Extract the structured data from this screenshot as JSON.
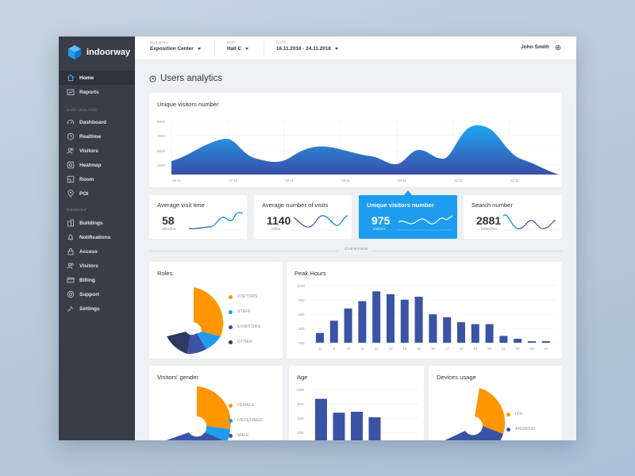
{
  "app": {
    "name": "indoorway"
  },
  "colors": {
    "primary": "#1e9cf0",
    "navy": "#3a53a4",
    "orange": "#ff9600",
    "dark": "#2d3a63",
    "sidebar": "#3a3d47"
  },
  "sidebar": {
    "top_items": [
      {
        "label": "Home",
        "icon": "home-icon",
        "active": true
      },
      {
        "label": "Reports",
        "icon": "reports-icon"
      }
    ],
    "analysis_header": "DATA ANALYSIS",
    "analysis_items": [
      {
        "label": "Dashboard",
        "icon": "dashboard-icon"
      },
      {
        "label": "Realtime",
        "icon": "clock-icon"
      },
      {
        "label": "Visitors",
        "icon": "visitors-icon"
      },
      {
        "label": "Heatmap",
        "icon": "heatmap-icon"
      },
      {
        "label": "Room",
        "icon": "room-icon"
      },
      {
        "label": "POI",
        "icon": "pin-icon"
      }
    ],
    "manage_header": "EMANAGE",
    "manage_items": [
      {
        "label": "Buildings",
        "icon": "building-icon"
      },
      {
        "label": "Notifications",
        "icon": "bell-icon"
      },
      {
        "label": "Access",
        "icon": "lock-icon"
      },
      {
        "label": "Visitors",
        "icon": "visitors-icon"
      },
      {
        "label": "Billing",
        "icon": "card-icon"
      },
      {
        "label": "Support",
        "icon": "support-icon"
      },
      {
        "label": "Settings",
        "icon": "wrench-icon"
      }
    ]
  },
  "topbar": {
    "building": {
      "label": "BUILDING",
      "value": "Exposition Center"
    },
    "map": {
      "label": "MAP",
      "value": "Hall C"
    },
    "data": {
      "label": "DATA",
      "value": "16.11.2016 - 24.11.2016"
    },
    "user": "John Smith"
  },
  "page": {
    "title": "Users analytics"
  },
  "visitors_chart": {
    "title": "Unique visitors number",
    "y_ticks": [
      "9000",
      "7000",
      "5000",
      "2000"
    ],
    "x_ticks": [
      "16.11",
      "17.11",
      "18.11",
      "19.11",
      "20.11",
      "21.11",
      "22.11"
    ]
  },
  "stats": [
    {
      "title": "Average visit time",
      "value": "58",
      "sub": "minutes"
    },
    {
      "title": "Average number of visits",
      "value": "1140",
      "sub": "visits"
    },
    {
      "title": "Unique visitors number",
      "value": "975",
      "sub": "visitors"
    },
    {
      "title": "Search number",
      "value": "2881",
      "sub": "searches"
    }
  ],
  "overview": "OVERVIEW",
  "roles": {
    "title": "Roles",
    "legend": [
      {
        "label": "VISITORS",
        "color": "#ff9600"
      },
      {
        "label": "STAFF",
        "color": "#1e9cf0"
      },
      {
        "label": "EXIBITORS",
        "color": "#3a53a4"
      },
      {
        "label": "OTHER",
        "color": "#2d3a63"
      }
    ]
  },
  "peak_hours": {
    "title": "Peak Hours",
    "y_ticks": [
      "1200",
      "900",
      "600",
      "300",
      "100"
    ]
  },
  "gender": {
    "title": "Visitors' gender",
    "legend": [
      {
        "label": "FEMALE",
        "color": "#ff9600"
      },
      {
        "label": "UNDEFINED",
        "color": "#1e9cf0"
      },
      {
        "label": "MALE",
        "color": "#3a53a4"
      }
    ]
  },
  "age": {
    "title": "Age",
    "y_ticks": [
      "1200",
      "900",
      "600",
      "300"
    ]
  },
  "devices": {
    "title": "Devices usage",
    "legend": [
      {
        "label": "IOS",
        "color": "#ff9600"
      },
      {
        "label": "ANDROID",
        "color": "#3a53a4"
      }
    ]
  },
  "chart_data": [
    {
      "type": "area",
      "title": "Unique visitors number",
      "x": [
        "16.11",
        "17.11",
        "18.11",
        "19.11",
        "20.11",
        "21.11",
        "22.11"
      ],
      "ylim": [
        0,
        9000
      ],
      "values": [
        2600,
        6000,
        3700,
        5600,
        2800,
        7700,
        1000
      ]
    },
    {
      "type": "bar",
      "title": "Peak Hours",
      "categories": [
        "8",
        "9",
        "10",
        "11",
        "12",
        "13",
        "14",
        "15",
        "16",
        "17",
        "18",
        "19",
        "20",
        "21",
        "22",
        "23",
        "24"
      ],
      "values": [
        200,
        450,
        700,
        850,
        1050,
        990,
        880,
        940,
        580,
        520,
        420,
        380,
        380,
        140,
        80,
        30,
        30
      ],
      "ylim": [
        0,
        1200
      ]
    },
    {
      "type": "bar",
      "title": "Age",
      "values": [
        1000,
        700,
        720,
        600
      ],
      "ylim": [
        0,
        1200
      ]
    },
    {
      "type": "pie",
      "title": "Roles",
      "labels": [
        "VISITORS",
        "STAFF",
        "EXIBITORS",
        "OTHER"
      ],
      "values": [
        50,
        22,
        17,
        11
      ]
    },
    {
      "type": "pie",
      "title": "Visitors' gender",
      "labels": [
        "FEMALE",
        "UNDEFINED",
        "MALE"
      ],
      "values": [
        45,
        10,
        45
      ]
    },
    {
      "type": "pie",
      "title": "Devices usage",
      "labels": [
        "IOS",
        "ANDROID"
      ],
      "values": [
        55,
        45
      ]
    }
  ]
}
